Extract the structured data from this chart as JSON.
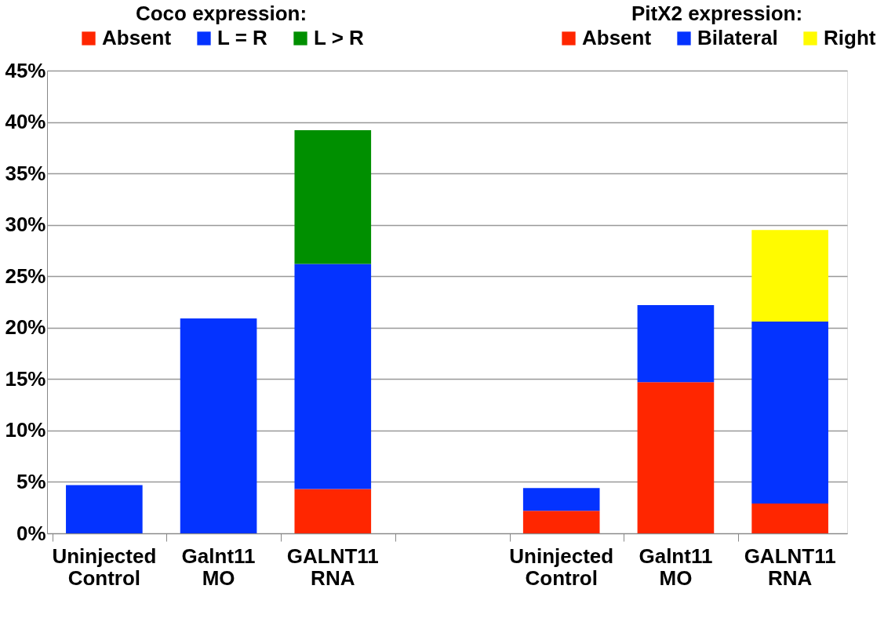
{
  "chart_data": {
    "type": "bar",
    "stacked": true,
    "categories": [
      "Uninjected Control",
      "Galnt11 MO",
      "GALNT11 RNA",
      null,
      "Uninjected Control",
      "Galnt11 MO",
      "GALNT11 RNA"
    ],
    "legend_title": [
      "Coco expression:",
      "PitX2 expression:"
    ],
    "series": [
      {
        "name": "Absent",
        "color": "#ff2600",
        "values": [
          null,
          null,
          4.3,
          null,
          null,
          null,
          null
        ]
      },
      {
        "name": "L = R",
        "color": "#0433ff",
        "values": [
          4.7,
          20.9,
          21.9,
          null,
          null,
          null,
          null
        ]
      },
      {
        "name": "L > R",
        "color": "#008f00",
        "values": [
          null,
          null,
          13.0,
          null,
          null,
          null,
          null
        ]
      },
      {
        "name": "Absent",
        "color": "#ff2600",
        "values": [
          null,
          null,
          null,
          null,
          2.2,
          14.7,
          2.9
        ]
      },
      {
        "name": "Bilateral",
        "color": "#0433ff",
        "values": [
          null,
          null,
          null,
          null,
          2.2,
          7.5,
          17.7
        ]
      },
      {
        "name": "Right",
        "color": "#fffb00",
        "values": [
          null,
          null,
          null,
          null,
          null,
          null,
          8.9
        ]
      }
    ],
    "ylim": [
      0,
      45
    ],
    "yticks": [
      {
        "value": 0,
        "label": "0%"
      },
      {
        "value": 5,
        "label": "5%"
      },
      {
        "value": 10,
        "label": "10%"
      },
      {
        "value": 15,
        "label": "15%"
      },
      {
        "value": 20,
        "label": "20%"
      },
      {
        "value": 25,
        "label": "25%"
      },
      {
        "value": 30,
        "label": "30%"
      },
      {
        "value": 35,
        "label": "35%"
      },
      {
        "value": 40,
        "label": "40%"
      },
      {
        "value": 45,
        "label": "45%"
      }
    ],
    "grid": "y",
    "legend": "top"
  }
}
